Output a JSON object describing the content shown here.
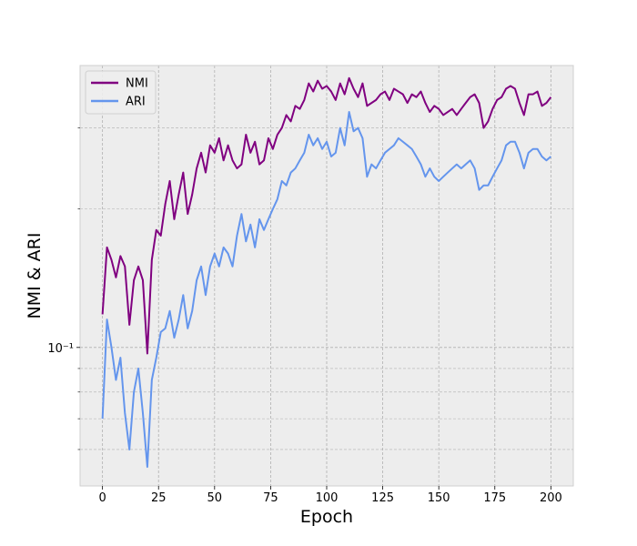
{
  "chart_data": {
    "type": "line",
    "xlabel": "Epoch",
    "ylabel": "NMI & ARI",
    "xlim": [
      -10,
      210
    ],
    "ylim": [
      0.05,
      0.41
    ],
    "yscale": "log",
    "grid": true,
    "legend_position": "top-left",
    "x_ticks": [
      0,
      25,
      50,
      75,
      100,
      125,
      150,
      175,
      200
    ],
    "y_major_ticks": [
      {
        "value": 0.1,
        "label": "10⁻¹"
      }
    ],
    "y_minor_ticks": [
      0.06,
      0.07,
      0.08,
      0.09,
      0.2,
      0.3
    ],
    "series": [
      {
        "name": "NMI",
        "color": "#800080",
        "x": [
          0,
          2,
          4,
          6,
          8,
          10,
          12,
          14,
          16,
          18,
          20,
          22,
          24,
          26,
          28,
          30,
          32,
          34,
          36,
          38,
          40,
          42,
          44,
          46,
          48,
          50,
          52,
          54,
          56,
          58,
          60,
          62,
          64,
          66,
          68,
          70,
          72,
          74,
          76,
          78,
          80,
          82,
          84,
          86,
          88,
          90,
          92,
          94,
          96,
          98,
          100,
          102,
          104,
          106,
          108,
          110,
          112,
          114,
          116,
          118,
          120,
          122,
          124,
          126,
          128,
          130,
          132,
          134,
          136,
          138,
          140,
          142,
          144,
          146,
          148,
          150,
          152,
          154,
          156,
          158,
          160,
          162,
          164,
          166,
          168,
          170,
          172,
          174,
          176,
          178,
          180,
          182,
          184,
          186,
          188,
          190,
          192,
          194,
          196,
          198,
          200
        ],
        "values": [
          0.118,
          0.165,
          0.155,
          0.142,
          0.158,
          0.15,
          0.112,
          0.14,
          0.15,
          0.14,
          0.097,
          0.155,
          0.18,
          0.175,
          0.205,
          0.23,
          0.19,
          0.215,
          0.24,
          0.195,
          0.215,
          0.245,
          0.265,
          0.24,
          0.275,
          0.265,
          0.285,
          0.255,
          0.275,
          0.255,
          0.245,
          0.25,
          0.29,
          0.265,
          0.28,
          0.25,
          0.255,
          0.285,
          0.27,
          0.29,
          0.3,
          0.32,
          0.31,
          0.335,
          0.33,
          0.345,
          0.375,
          0.36,
          0.38,
          0.365,
          0.37,
          0.36,
          0.345,
          0.375,
          0.355,
          0.385,
          0.365,
          0.35,
          0.375,
          0.335,
          0.34,
          0.345,
          0.355,
          0.36,
          0.345,
          0.365,
          0.36,
          0.355,
          0.34,
          0.355,
          0.35,
          0.36,
          0.34,
          0.325,
          0.335,
          0.33,
          0.32,
          0.325,
          0.33,
          0.32,
          0.33,
          0.34,
          0.35,
          0.355,
          0.34,
          0.3,
          0.31,
          0.33,
          0.345,
          0.35,
          0.365,
          0.37,
          0.365,
          0.34,
          0.32,
          0.355,
          0.355,
          0.36,
          0.335,
          0.34,
          0.35
        ]
      },
      {
        "name": "ARI",
        "color": "#6495ED",
        "x": [
          0,
          2,
          4,
          6,
          8,
          10,
          12,
          14,
          16,
          18,
          20,
          22,
          24,
          26,
          28,
          30,
          32,
          34,
          36,
          38,
          40,
          42,
          44,
          46,
          48,
          50,
          52,
          54,
          56,
          58,
          60,
          62,
          64,
          66,
          68,
          70,
          72,
          74,
          76,
          78,
          80,
          82,
          84,
          86,
          88,
          90,
          92,
          94,
          96,
          98,
          100,
          102,
          104,
          106,
          108,
          110,
          112,
          114,
          116,
          118,
          120,
          122,
          124,
          126,
          128,
          130,
          132,
          134,
          136,
          138,
          140,
          142,
          144,
          146,
          148,
          150,
          152,
          154,
          156,
          158,
          160,
          162,
          164,
          166,
          168,
          170,
          172,
          174,
          176,
          178,
          180,
          182,
          184,
          186,
          188,
          190,
          192,
          194,
          196,
          198,
          200
        ],
        "values": [
          0.07,
          0.115,
          0.1,
          0.085,
          0.095,
          0.072,
          0.06,
          0.08,
          0.09,
          0.072,
          0.055,
          0.085,
          0.095,
          0.108,
          0.11,
          0.12,
          0.105,
          0.115,
          0.13,
          0.11,
          0.12,
          0.14,
          0.15,
          0.13,
          0.15,
          0.16,
          0.15,
          0.165,
          0.16,
          0.15,
          0.175,
          0.195,
          0.17,
          0.185,
          0.165,
          0.19,
          0.18,
          0.19,
          0.2,
          0.21,
          0.23,
          0.225,
          0.24,
          0.245,
          0.255,
          0.265,
          0.29,
          0.275,
          0.285,
          0.27,
          0.28,
          0.26,
          0.265,
          0.3,
          0.275,
          0.325,
          0.295,
          0.3,
          0.285,
          0.235,
          0.25,
          0.245,
          0.255,
          0.265,
          0.27,
          0.275,
          0.285,
          0.28,
          0.275,
          0.27,
          0.26,
          0.25,
          0.235,
          0.245,
          0.235,
          0.23,
          0.235,
          0.24,
          0.245,
          0.25,
          0.245,
          0.25,
          0.255,
          0.245,
          0.22,
          0.225,
          0.225,
          0.235,
          0.245,
          0.255,
          0.275,
          0.28,
          0.28,
          0.265,
          0.245,
          0.265,
          0.27,
          0.27,
          0.26,
          0.255,
          0.26
        ]
      }
    ]
  }
}
